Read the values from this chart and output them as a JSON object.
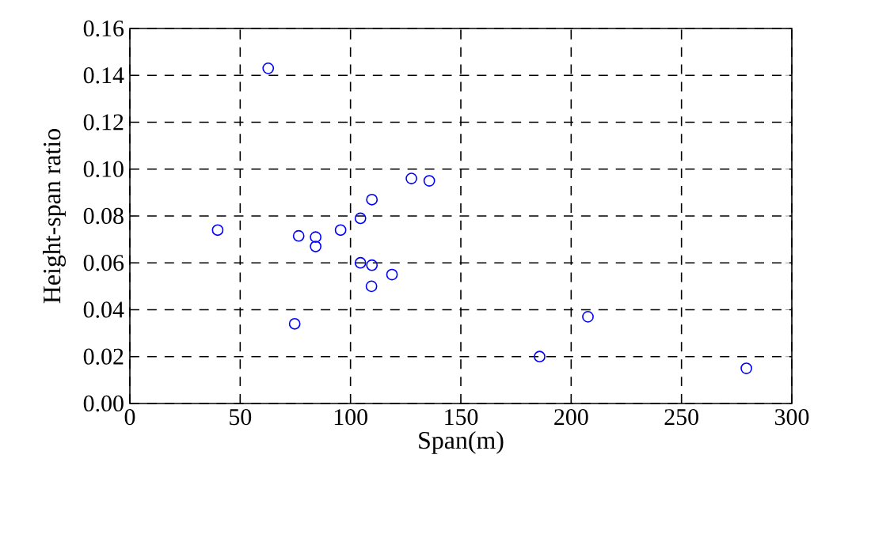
{
  "chart_data": {
    "type": "scatter",
    "xlabel": "Span(m)",
    "ylabel": "Height-span ratio",
    "x": [
      39.8,
      62.7,
      76.5,
      84.2,
      84.2,
      74.7,
      95.5,
      104.5,
      109.7,
      104.5,
      109.7,
      109.5,
      118.8,
      127.6,
      135.7,
      185.7,
      207.6,
      279.4
    ],
    "series": [
      {
        "color": "#0000ff",
        "values": [
          0.074,
          0.143,
          0.0715,
          0.071,
          0.067,
          0.034,
          0.074,
          0.079,
          0.087,
          0.06,
          0.059,
          0.05,
          0.055,
          0.096,
          0.095,
          0.02,
          0.037,
          0.015
        ]
      }
    ],
    "xlim": [
      0,
      300
    ],
    "xticks": [
      0,
      50,
      100,
      150,
      200,
      250,
      300
    ],
    "ylim": [
      0,
      0.16
    ],
    "yticks": [
      {
        "value": 0,
        "label": "0.00"
      },
      {
        "value": 0.02,
        "label": "0.02"
      },
      {
        "value": 0.04,
        "label": "0.04"
      },
      {
        "value": 0.06,
        "label": "0.06"
      },
      {
        "value": 0.08,
        "label": "0.08"
      },
      {
        "value": 0.1,
        "label": "0.10"
      },
      {
        "value": 0.12,
        "label": "0.12"
      },
      {
        "value": 0.14,
        "label": "0.14"
      },
      {
        "value": 0.16,
        "label": "0.16"
      }
    ],
    "grid": true,
    "marker": "circle"
  }
}
